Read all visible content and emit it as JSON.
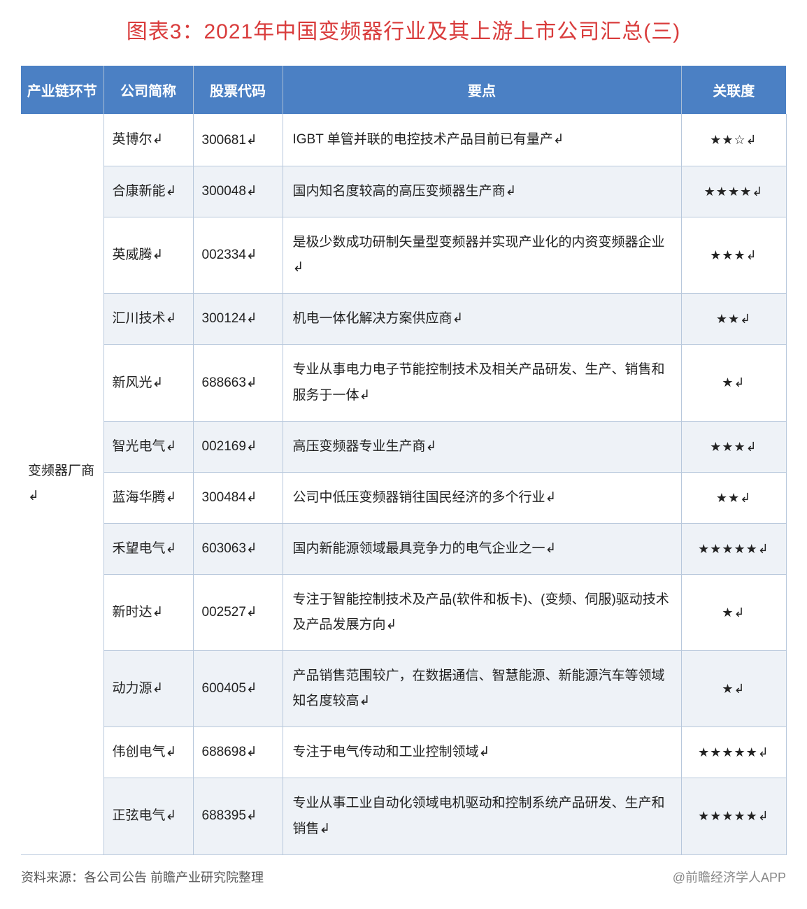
{
  "title": "图表3：2021年中国变频器行业及其上游上市公司汇总(三)",
  "columns": {
    "cat": "产业链环节",
    "comp": "公司简称",
    "code": "股票代码",
    "desc": "要点",
    "stars": "关联度"
  },
  "category_label": "变频器厂商↲",
  "col_widths": {
    "cat": 118,
    "comp": 128,
    "code": 128,
    "desc": 570,
    "stars": 150
  },
  "header_bg": "#4b80c4",
  "header_fg": "#ffffff",
  "alt_row_bg": "#eef2f7",
  "border_color": "#b8c8dc",
  "title_color": "#d93c3c",
  "rows": [
    {
      "company": "英博尔↲",
      "code": "300681↲",
      "desc": "IGBT 单管并联的电控技术产品目前已有量产↲",
      "stars": "★★☆↲"
    },
    {
      "company": "合康新能↲",
      "code": "300048↲",
      "desc": "国内知名度较高的高压变频器生产商↲",
      "stars": "★★★★↲"
    },
    {
      "company": "英威腾↲",
      "code": "002334↲",
      "desc": "是极少数成功研制矢量型变频器并实现产业化的内资变频器企业↲",
      "stars": "★★★↲"
    },
    {
      "company": "汇川技术↲",
      "code": "300124↲",
      "desc": "机电一体化解决方案供应商↲",
      "stars": "★★↲"
    },
    {
      "company": "新风光↲",
      "code": "688663↲",
      "desc": "专业从事电力电子节能控制技术及相关产品研发、生产、销售和服务于一体↲",
      "stars": "★↲"
    },
    {
      "company": "智光电气↲",
      "code": "002169↲",
      "desc": "高压变频器专业生产商↲",
      "stars": "★★★↲"
    },
    {
      "company": "蓝海华腾↲",
      "code": "300484↲",
      "desc": "公司中低压变频器销往国民经济的多个行业↲",
      "stars": "★★↲"
    },
    {
      "company": "禾望电气↲",
      "code": "603063↲",
      "desc": "国内新能源领域最具竞争力的电气企业之一↲",
      "stars": "★★★★★↲"
    },
    {
      "company": "新时达↲",
      "code": "002527↲",
      "desc": "专注于智能控制技术及产品(软件和板卡)、(变频、伺服)驱动技术及产品发展方向↲",
      "stars": "★↲"
    },
    {
      "company": "动力源↲",
      "code": "600405↲",
      "desc": "产品销售范围较广，在数据通信、智慧能源、新能源汽车等领域知名度较高↲",
      "stars": "★↲"
    },
    {
      "company": "伟创电气↲",
      "code": "688698↲",
      "desc": "专注于电气传动和工业控制领域↲",
      "stars": "★★★★★↲"
    },
    {
      "company": "正弦电气↲",
      "code": "688395↲",
      "desc": "专业从事工业自动化领域电机驱动和控制系统产品研发、生产和销售↲",
      "stars": "★★★★★↲"
    }
  ],
  "footer": {
    "left": "资料来源：各公司公告 前瞻产业研究院整理",
    "right": "@前瞻经济学人APP"
  }
}
